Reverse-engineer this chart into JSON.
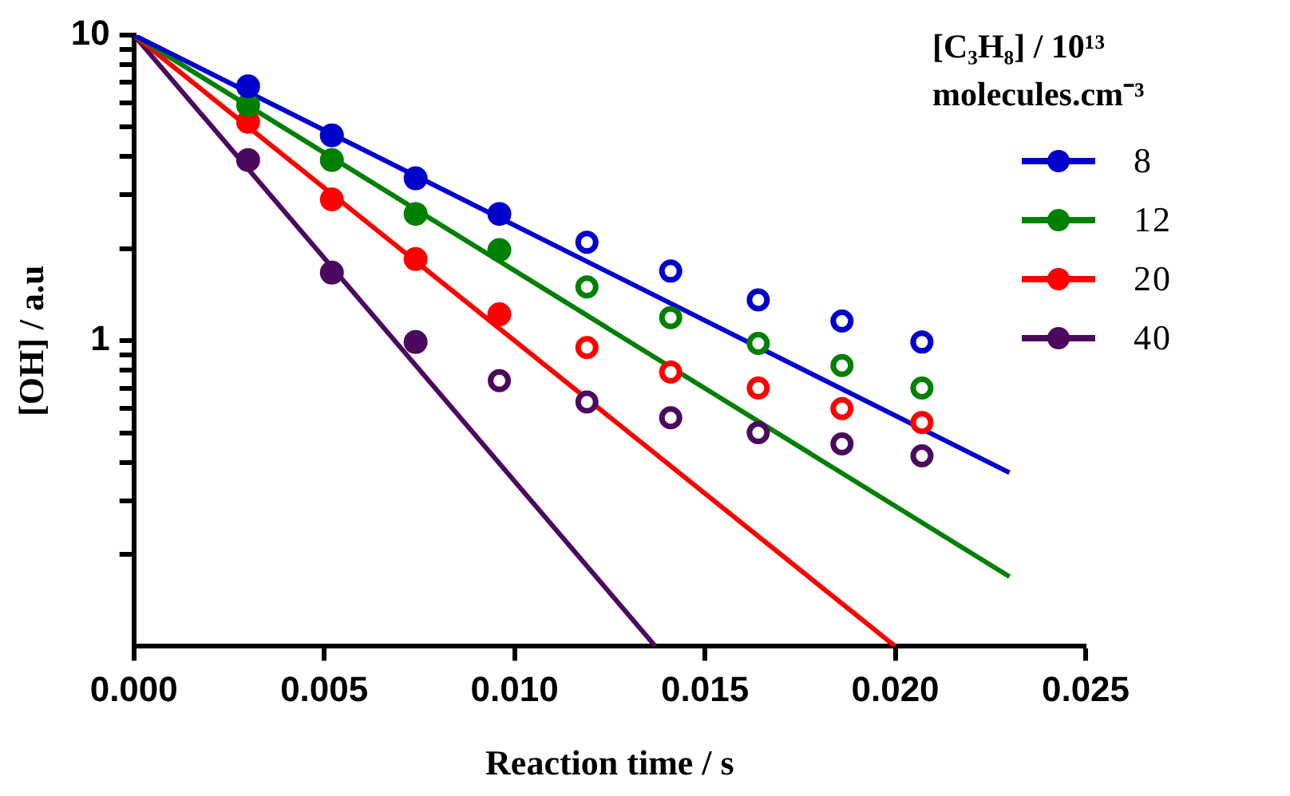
{
  "chart_data": {
    "type": "scatter",
    "xlabel": "Reaction time / s",
    "ylabel": "[OH] / a.u",
    "legend_title": "[C₃H₈] /  10¹³ molecules.cm⁻³",
    "legend": "right",
    "log": "y",
    "grid": false,
    "xlim": [
      0,
      0.025
    ],
    "xticks": [
      {
        "value": 0,
        "label": "0.000"
      },
      {
        "value": 0.005,
        "label": "0.005"
      },
      {
        "value": 0.01,
        "label": "0.010"
      },
      {
        "value": 0.015,
        "label": "0.015"
      },
      {
        "value": 0.02,
        "label": "0.020"
      },
      {
        "value": 0.025,
        "label": "0.025"
      }
    ],
    "ylim": [
      0.1,
      10
    ],
    "yticks": [
      {
        "value": 0.2,
        "label": null
      },
      {
        "value": 0.3,
        "label": null
      },
      {
        "value": 0.4,
        "label": null
      },
      {
        "value": 0.5,
        "label": null
      },
      {
        "value": 0.6,
        "label": null
      },
      {
        "value": 0.7,
        "label": null
      },
      {
        "value": 0.8,
        "label": null
      },
      {
        "value": 0.9,
        "label": null
      },
      1,
      {
        "value": 2,
        "label": null
      },
      {
        "value": 3,
        "label": null
      },
      {
        "value": 4,
        "label": null
      },
      {
        "value": 5,
        "label": null
      },
      {
        "value": 6,
        "label": null
      },
      {
        "value": 7,
        "label": null
      },
      {
        "value": 8,
        "label": null
      },
      {
        "value": 9,
        "label": null
      },
      10
    ],
    "series": [
      {
        "name": "8",
        "type": "scatter",
        "marker": "circle",
        "color": "#0000cc",
        "x": [
          0.003,
          0.0052,
          0.0074,
          0.0096
        ],
        "values": [
          6.8,
          4.7,
          3.4,
          2.6
        ]
      },
      {
        "type": "scatter",
        "marker": "circle",
        "color": "#0000cc",
        "x": [
          0.0119,
          0.0141,
          0.0164,
          0.0186,
          0.0207
        ],
        "values": [
          2.1,
          1.69,
          1.36,
          1.16,
          0.99
        ]
      },
      {
        "type": "line",
        "marker": "none",
        "color": "#0000cc",
        "x": [
          0,
          0.023
        ],
        "values": [
          10,
          0.37
        ]
      },
      {
        "name": "12",
        "type": "scatter",
        "marker": "circle",
        "color": "#008000",
        "x": [
          0.003,
          0.0052,
          0.0074,
          0.0096
        ],
        "values": [
          5.9,
          3.9,
          2.6,
          1.98
        ]
      },
      {
        "type": "scatter",
        "marker": "circle",
        "color": "#008000",
        "x": [
          0.0119,
          0.0141,
          0.0164,
          0.0186,
          0.0207
        ],
        "values": [
          1.5,
          1.19,
          0.98,
          0.83,
          0.7
        ]
      },
      {
        "type": "line",
        "marker": "none",
        "color": "#008000",
        "x": [
          0,
          0.023
        ],
        "values": [
          10,
          0.169
        ]
      },
      {
        "name": "20",
        "type": "scatter",
        "marker": "circle",
        "color": "#ff0000",
        "x": [
          0.003,
          0.0052,
          0.0074,
          0.0096
        ],
        "values": [
          5.2,
          2.9,
          1.85,
          1.22
        ]
      },
      {
        "type": "scatter",
        "marker": "circle",
        "color": "#ff0000",
        "x": [
          0.0119,
          0.0141,
          0.0164,
          0.0186,
          0.0207
        ],
        "values": [
          0.95,
          0.79,
          0.7,
          0.6,
          0.54
        ]
      },
      {
        "type": "line",
        "marker": "none",
        "color": "#ff0000",
        "x": [
          0,
          0.02
        ],
        "values": [
          10,
          0.1
        ]
      },
      {
        "name": "40",
        "type": "scatter",
        "marker": "circle",
        "color": "#4b0a5e",
        "x": [
          0.003,
          0.0052,
          0.0074
        ],
        "values": [
          3.9,
          1.67,
          0.99
        ]
      },
      {
        "type": "scatter",
        "marker": "circle",
        "color": "#4b0a5e",
        "x": [
          0.0096,
          0.0119,
          0.0141,
          0.0164,
          0.0186,
          0.0207
        ],
        "values": [
          0.74,
          0.63,
          0.56,
          0.5,
          0.46,
          0.42
        ]
      },
      {
        "type": "line",
        "marker": "none",
        "color": "#4b0a5e",
        "x": [
          0,
          0.0137
        ],
        "values": [
          10,
          0.1
        ]
      }
    ]
  }
}
